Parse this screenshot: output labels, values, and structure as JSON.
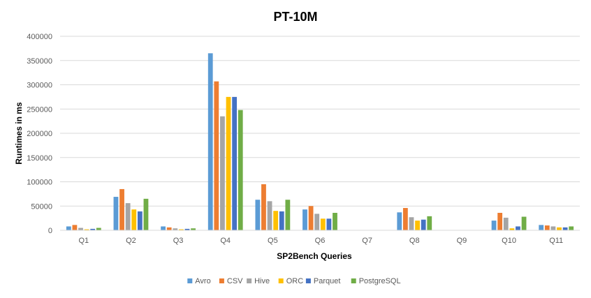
{
  "chart_data": {
    "type": "bar",
    "title": "PT-10M",
    "xlabel": "SP2Bench Queries",
    "ylabel": "Runtimes in ms",
    "ylim": [
      0,
      400000
    ],
    "yticks": [
      0,
      50000,
      100000,
      150000,
      200000,
      250000,
      300000,
      350000,
      400000
    ],
    "ytick_labels": [
      "0",
      "50000",
      "100000",
      "150000",
      "200000",
      "250000",
      "300000",
      "350000",
      "400000"
    ],
    "categories": [
      "Q1",
      "Q2",
      "Q3",
      "Q4",
      "Q5",
      "Q6",
      "Q7",
      "Q8",
      "Q9",
      "Q10",
      "Q11"
    ],
    "grid": true,
    "legend_position": "bottom",
    "series": [
      {
        "name": "Avro",
        "color": "#5B9BD5",
        "values": [
          8000,
          69000,
          8000,
          365000,
          63000,
          43000,
          0,
          37000,
          0,
          20000,
          11000
        ]
      },
      {
        "name": "CSV",
        "color": "#ED7D31",
        "values": [
          11000,
          85000,
          6000,
          307000,
          95000,
          50000,
          0,
          46000,
          0,
          36000,
          10000
        ]
      },
      {
        "name": "Hive",
        "color": "#A5A5A5",
        "values": [
          5000,
          56000,
          4000,
          235000,
          60000,
          34000,
          0,
          27000,
          0,
          26000,
          8000
        ]
      },
      {
        "name": "ORC",
        "color": "#FFC000",
        "values": [
          2000,
          43000,
          2000,
          275000,
          40000,
          24000,
          0,
          20000,
          0,
          4000,
          6000
        ]
      },
      {
        "name": "Parquet",
        "color": "#4472C4",
        "values": [
          3000,
          39000,
          3000,
          275000,
          39000,
          24000,
          0,
          22000,
          0,
          8000,
          6000
        ]
      },
      {
        "name": "PostgreSQL",
        "color": "#70AD47",
        "values": [
          5000,
          65000,
          4000,
          248000,
          63000,
          36000,
          0,
          29000,
          0,
          28000,
          8000
        ]
      }
    ]
  }
}
